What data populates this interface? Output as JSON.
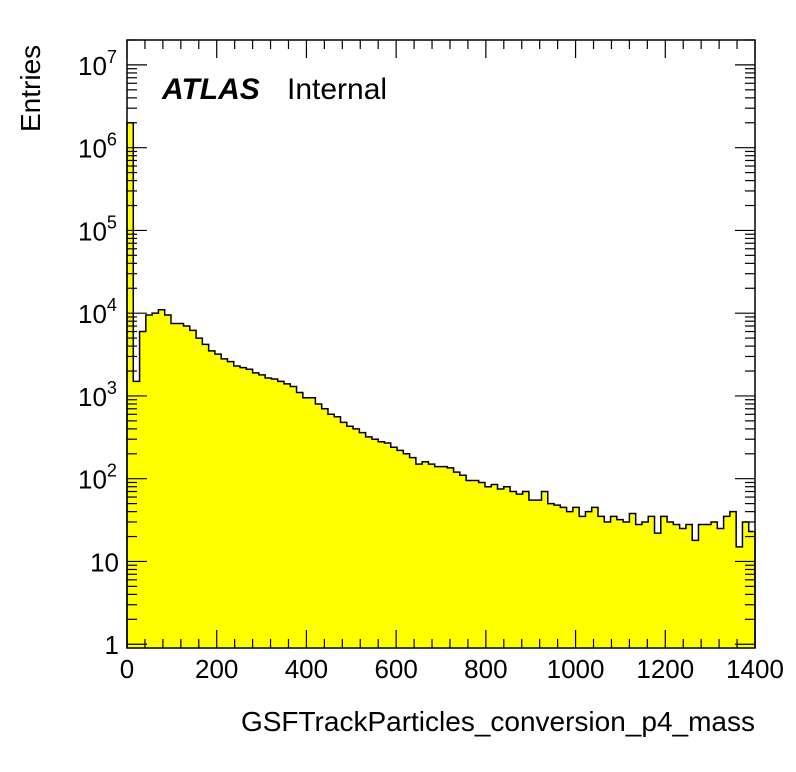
{
  "chart_data": {
    "type": "bar",
    "style": "histogram",
    "xlabel": "GSFTrackParticles_conversion_p4_mass",
    "ylabel": "Entries",
    "xlim": [
      0,
      1400
    ],
    "ylim": [
      0.9,
      20000000
    ],
    "y_scale": "log",
    "x_ticks": [
      "0",
      "200",
      "400",
      "600",
      "800",
      "1000",
      "1200",
      "1400"
    ],
    "y_ticks": [
      {
        "value": 1,
        "base": "1",
        "exp": ""
      },
      {
        "value": 10,
        "base": "10",
        "exp": ""
      },
      {
        "value": 100,
        "base": "10",
        "exp": "2"
      },
      {
        "value": 1000,
        "base": "10",
        "exp": "3"
      },
      {
        "value": 10000,
        "base": "10",
        "exp": "4"
      },
      {
        "value": 100000,
        "base": "10",
        "exp": "5"
      },
      {
        "value": 1000000,
        "base": "10",
        "exp": "6"
      },
      {
        "value": 10000000,
        "base": "10",
        "exp": "7"
      }
    ],
    "bin_width": 14,
    "values": [
      2000000,
      1500,
      6000,
      9500,
      10000,
      11000,
      9500,
      7500,
      7500,
      7000,
      6200,
      5000,
      4200,
      3500,
      3200,
      2800,
      2600,
      2300,
      2200,
      2100,
      1900,
      1800,
      1650,
      1600,
      1500,
      1400,
      1300,
      1100,
      950,
      950,
      800,
      700,
      600,
      560,
      480,
      430,
      400,
      360,
      320,
      300,
      280,
      270,
      240,
      220,
      200,
      180,
      150,
      160,
      150,
      140,
      140,
      135,
      120,
      110,
      95,
      95,
      90,
      80,
      85,
      75,
      80,
      70,
      65,
      70,
      55,
      55,
      70,
      50,
      48,
      45,
      40,
      45,
      35,
      40,
      45,
      35,
      30,
      35,
      32,
      30,
      38,
      28,
      30,
      35,
      22,
      35,
      30,
      28,
      25,
      28,
      18,
      28,
      28,
      30,
      25,
      35,
      40,
      15,
      30,
      23
    ]
  },
  "annotation": {
    "atlas": "ATLAS",
    "internal": "Internal"
  },
  "colors": {
    "fill": "#ffff00",
    "line": "#000000",
    "frame": "#000000",
    "background": "#ffffff"
  }
}
